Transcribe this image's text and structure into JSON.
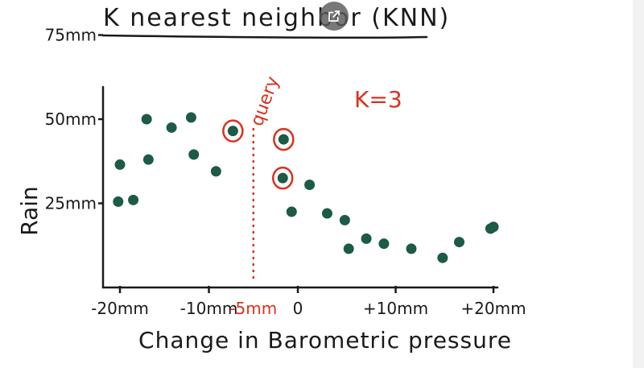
{
  "colors": {
    "ink": "#1a1a1a",
    "point": "#1d5a47",
    "query": "#d8321e"
  },
  "icons": {
    "popout": "open-in-new-icon"
  },
  "chart_data": {
    "type": "scatter",
    "title": "K nearest neighbor (KNN)",
    "xlabel": "Change in Barometric pressure",
    "ylabel": "Rain",
    "x_ticks": [
      {
        "value": -20,
        "label": "-20mm"
      },
      {
        "value": -10,
        "label": "-10mm"
      },
      {
        "value": -5,
        "label": "-5mm"
      },
      {
        "value": 0,
        "label": "0"
      },
      {
        "value": 10,
        "label": "+10mm"
      },
      {
        "value": 20,
        "label": "+20mm"
      }
    ],
    "y_ticks": [
      {
        "value": 25,
        "label": "25mm"
      },
      {
        "value": 50,
        "label": "50mm"
      },
      {
        "value": 75,
        "label": "75mm"
      }
    ],
    "xlim": [
      -21.5,
      21
    ],
    "ylim": [
      0,
      80
    ],
    "query": {
      "x": -5,
      "label": "query"
    },
    "k_label": "K=3",
    "points": [
      {
        "x": -20.2,
        "y": 25.5
      },
      {
        "x": -20,
        "y": 36.5
      },
      {
        "x": -18.5,
        "y": 26
      },
      {
        "x": -17,
        "y": 50
      },
      {
        "x": -16.8,
        "y": 38
      },
      {
        "x": -14.2,
        "y": 47.5
      },
      {
        "x": -12,
        "y": 50.5
      },
      {
        "x": -11.7,
        "y": 39.5
      },
      {
        "x": -9.2,
        "y": 34.5
      },
      {
        "x": -7.3,
        "y": 46.5,
        "neighbor": true
      },
      {
        "x": -1.6,
        "y": 44,
        "neighbor": true
      },
      {
        "x": -1.7,
        "y": 32.5,
        "neighbor": true
      },
      {
        "x": -0.7,
        "y": 22.5
      },
      {
        "x": 1.2,
        "y": 30.5
      },
      {
        "x": 3,
        "y": 22
      },
      {
        "x": 4.8,
        "y": 20
      },
      {
        "x": 5.2,
        "y": 11.5
      },
      {
        "x": 7,
        "y": 14.5
      },
      {
        "x": 8.8,
        "y": 13
      },
      {
        "x": 11.6,
        "y": 11.5
      },
      {
        "x": 14.8,
        "y": 8.8
      },
      {
        "x": 16.5,
        "y": 13.5
      },
      {
        "x": 19.7,
        "y": 17.5
      },
      {
        "x": 20,
        "y": 18
      }
    ]
  }
}
